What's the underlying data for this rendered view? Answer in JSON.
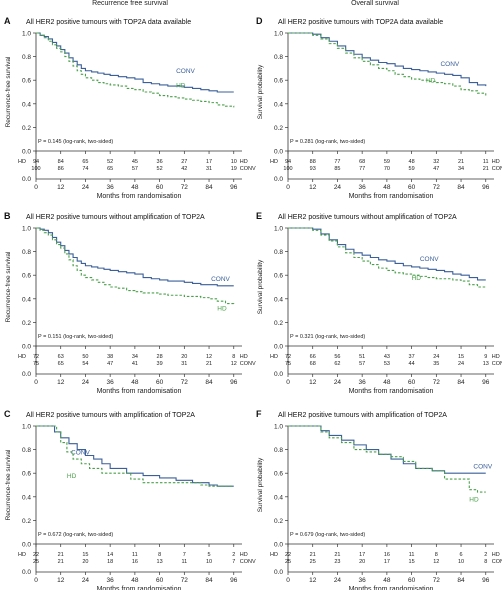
{
  "headers": {
    "left": "Recurrence free survival",
    "right": "Overall survival"
  },
  "colors": {
    "conv": "#3a5f9a",
    "hd": "#4aa04a",
    "axis": "#333333"
  },
  "x_axis_label": "Months from randomisation",
  "chart_data": [
    {
      "type": "line",
      "letter": "A",
      "title": "All HER2 positive tumours with TOP2A data available",
      "ylabel": "Recurrence-free survival",
      "xlabel": "Months from randomisation",
      "xlim": [
        0,
        100
      ],
      "ylim": [
        0,
        1.0
      ],
      "xticks": [
        0,
        12,
        24,
        36,
        48,
        60,
        72,
        84,
        96
      ],
      "yticks": [
        "0.0",
        "0.2",
        "0.4",
        "0.6",
        "0.8",
        "1.0"
      ],
      "pvalue": "P = 0.145 (log-rank, two-sided)",
      "series": [
        {
          "name": "CONV",
          "style": "solid",
          "label_at": [
            68,
            0.66
          ],
          "x": [
            0,
            2,
            4,
            6,
            8,
            10,
            12,
            14,
            16,
            18,
            20,
            22,
            24,
            27,
            30,
            33,
            36,
            40,
            44,
            48,
            52,
            56,
            60,
            64,
            68,
            72,
            76,
            80,
            84,
            88,
            92,
            96
          ],
          "y": [
            1.0,
            0.98,
            0.97,
            0.95,
            0.92,
            0.89,
            0.86,
            0.83,
            0.79,
            0.76,
            0.73,
            0.7,
            0.68,
            0.67,
            0.66,
            0.65,
            0.64,
            0.63,
            0.62,
            0.61,
            0.58,
            0.57,
            0.56,
            0.55,
            0.55,
            0.54,
            0.53,
            0.52,
            0.51,
            0.5,
            0.5,
            0.5
          ]
        },
        {
          "name": "HD",
          "style": "dashed",
          "label_at": [
            68,
            0.54
          ],
          "x": [
            0,
            2,
            4,
            6,
            8,
            10,
            12,
            14,
            16,
            18,
            20,
            22,
            24,
            27,
            30,
            33,
            36,
            40,
            44,
            48,
            52,
            56,
            60,
            64,
            68,
            72,
            76,
            80,
            84,
            88,
            92,
            96
          ],
          "y": [
            1.0,
            0.98,
            0.96,
            0.93,
            0.9,
            0.87,
            0.84,
            0.8,
            0.76,
            0.72,
            0.68,
            0.65,
            0.62,
            0.6,
            0.58,
            0.57,
            0.56,
            0.55,
            0.53,
            0.52,
            0.5,
            0.49,
            0.47,
            0.46,
            0.45,
            0.44,
            0.43,
            0.42,
            0.41,
            0.39,
            0.38,
            0.37
          ]
        }
      ],
      "risk_table": {
        "labels": [
          "HD",
          "CONV"
        ],
        "rows": [
          [
            "94",
            "84",
            "65",
            "52",
            "45",
            "36",
            "27",
            "17",
            "10"
          ],
          [
            "100",
            "86",
            "74",
            "65",
            "57",
            "52",
            "42",
            "31",
            "19"
          ]
        ]
      }
    },
    {
      "type": "line",
      "letter": "D",
      "title": "All HER2 positive tumours with TOP2A data available",
      "ylabel": "Survival probability",
      "xlabel": "Months from randomisation",
      "xlim": [
        0,
        100
      ],
      "ylim": [
        0,
        1.0
      ],
      "xticks": [
        0,
        12,
        24,
        36,
        48,
        60,
        72,
        84,
        96
      ],
      "yticks": [
        "0.0",
        "0.2",
        "0.4",
        "0.6",
        "0.8",
        "1.0"
      ],
      "pvalue": "P = 0.281 (log-rank, two-sided)",
      "series": [
        {
          "name": "CONV",
          "style": "solid",
          "label_at": [
            74,
            0.72
          ],
          "x": [
            0,
            4,
            8,
            12,
            16,
            20,
            24,
            28,
            32,
            36,
            40,
            44,
            48,
            52,
            56,
            60,
            64,
            68,
            72,
            76,
            80,
            84,
            88,
            92,
            96
          ],
          "y": [
            1.0,
            1.0,
            1.0,
            0.99,
            0.96,
            0.93,
            0.89,
            0.85,
            0.82,
            0.79,
            0.77,
            0.75,
            0.74,
            0.72,
            0.7,
            0.69,
            0.68,
            0.67,
            0.66,
            0.65,
            0.64,
            0.62,
            0.58,
            0.56,
            0.55
          ]
        },
        {
          "name": "HD",
          "style": "dashed",
          "label_at": [
            67,
            0.58
          ],
          "x": [
            0,
            4,
            8,
            12,
            16,
            20,
            24,
            28,
            32,
            36,
            40,
            44,
            48,
            52,
            56,
            60,
            64,
            68,
            72,
            76,
            80,
            84,
            88,
            92,
            96
          ],
          "y": [
            1.0,
            1.0,
            1.0,
            0.98,
            0.95,
            0.91,
            0.87,
            0.83,
            0.79,
            0.76,
            0.73,
            0.7,
            0.68,
            0.65,
            0.63,
            0.61,
            0.6,
            0.59,
            0.58,
            0.57,
            0.55,
            0.52,
            0.51,
            0.49,
            0.47
          ]
        }
      ],
      "risk_table": {
        "labels": [
          "HD",
          "CONV"
        ],
        "rows": [
          [
            "94",
            "88",
            "77",
            "68",
            "59",
            "48",
            "32",
            "21",
            "11"
          ],
          [
            "100",
            "93",
            "85",
            "77",
            "70",
            "59",
            "47",
            "34",
            "21"
          ]
        ]
      }
    },
    {
      "type": "line",
      "letter": "B",
      "title": "All HER2 positive tumours without amplification of TOP2A",
      "ylabel": "Recurrence-free survival",
      "xlabel": "Months from randomisation",
      "xlim": [
        0,
        100
      ],
      "ylim": [
        0,
        1.0
      ],
      "xticks": [
        0,
        12,
        24,
        36,
        48,
        60,
        72,
        84,
        96
      ],
      "yticks": [
        "0.0",
        "0.2",
        "0.4",
        "0.6",
        "0.8",
        "1.0"
      ],
      "pvalue": "P = 0.151 (log-rank, two-sided)",
      "series": [
        {
          "name": "CONV",
          "style": "solid",
          "label_at": [
            85,
            0.55
          ],
          "x": [
            0,
            2,
            4,
            6,
            8,
            10,
            12,
            14,
            16,
            18,
            20,
            22,
            24,
            27,
            30,
            33,
            36,
            40,
            44,
            48,
            52,
            56,
            60,
            64,
            68,
            72,
            76,
            80,
            84,
            88,
            92,
            96
          ],
          "y": [
            1.0,
            0.99,
            0.98,
            0.96,
            0.92,
            0.88,
            0.85,
            0.81,
            0.78,
            0.75,
            0.72,
            0.7,
            0.68,
            0.67,
            0.66,
            0.65,
            0.64,
            0.63,
            0.62,
            0.61,
            0.58,
            0.57,
            0.56,
            0.55,
            0.55,
            0.54,
            0.53,
            0.52,
            0.52,
            0.51,
            0.51,
            0.51
          ]
        },
        {
          "name": "HD",
          "style": "dashed",
          "label_at": [
            88,
            0.3
          ],
          "x": [
            0,
            2,
            4,
            6,
            8,
            10,
            12,
            14,
            16,
            18,
            20,
            22,
            24,
            27,
            30,
            33,
            36,
            40,
            44,
            48,
            52,
            56,
            60,
            64,
            68,
            72,
            76,
            80,
            84,
            88,
            92,
            96
          ],
          "y": [
            1.0,
            0.98,
            0.96,
            0.94,
            0.9,
            0.86,
            0.83,
            0.78,
            0.73,
            0.68,
            0.64,
            0.6,
            0.58,
            0.56,
            0.54,
            0.52,
            0.5,
            0.49,
            0.47,
            0.46,
            0.45,
            0.45,
            0.44,
            0.43,
            0.43,
            0.42,
            0.42,
            0.41,
            0.4,
            0.38,
            0.36,
            0.35
          ]
        }
      ],
      "risk_table": {
        "labels": [
          "HD",
          "CONV"
        ],
        "rows": [
          [
            "72",
            "63",
            "50",
            "38",
            "34",
            "28",
            "20",
            "12",
            "8"
          ],
          [
            "75",
            "65",
            "54",
            "47",
            "41",
            "39",
            "31",
            "21",
            "12"
          ]
        ]
      }
    },
    {
      "type": "line",
      "letter": "E",
      "title": "All HER2 positive tumours without amplification of TOP2A",
      "ylabel": "Survival probability",
      "xlabel": "Months from randomisation",
      "xlim": [
        0,
        100
      ],
      "ylim": [
        0,
        1.0
      ],
      "xticks": [
        0,
        12,
        24,
        36,
        48,
        60,
        72,
        84,
        96
      ],
      "yticks": [
        "0.0",
        "0.2",
        "0.4",
        "0.6",
        "0.8",
        "1.0"
      ],
      "pvalue": "P = 0.321 (log-rank, two-sided)",
      "series": [
        {
          "name": "CONV",
          "style": "solid",
          "label_at": [
            64,
            0.72
          ],
          "x": [
            0,
            4,
            8,
            12,
            16,
            20,
            24,
            28,
            32,
            36,
            40,
            44,
            48,
            52,
            56,
            60,
            64,
            68,
            72,
            76,
            80,
            84,
            88,
            92,
            96
          ],
          "y": [
            1.0,
            1.0,
            1.0,
            0.99,
            0.95,
            0.9,
            0.86,
            0.82,
            0.79,
            0.77,
            0.75,
            0.73,
            0.72,
            0.7,
            0.68,
            0.67,
            0.66,
            0.65,
            0.64,
            0.63,
            0.61,
            0.6,
            0.58,
            0.56,
            0.56
          ]
        },
        {
          "name": "HD",
          "style": "dashed",
          "label_at": [
            60,
            0.56
          ],
          "x": [
            0,
            4,
            8,
            12,
            16,
            20,
            24,
            28,
            32,
            36,
            40,
            44,
            48,
            52,
            56,
            60,
            64,
            68,
            72,
            76,
            80,
            84,
            88,
            92,
            96
          ],
          "y": [
            1.0,
            1.0,
            1.0,
            0.98,
            0.94,
            0.89,
            0.84,
            0.79,
            0.75,
            0.72,
            0.69,
            0.66,
            0.64,
            0.62,
            0.61,
            0.6,
            0.59,
            0.58,
            0.57,
            0.57,
            0.56,
            0.55,
            0.52,
            0.5,
            0.49
          ]
        }
      ],
      "risk_table": {
        "labels": [
          "HD",
          "CONV"
        ],
        "rows": [
          [
            "72",
            "66",
            "56",
            "51",
            "43",
            "37",
            "24",
            "15",
            "9"
          ],
          [
            "75",
            "68",
            "62",
            "57",
            "53",
            "44",
            "35",
            "24",
            "13"
          ]
        ]
      }
    },
    {
      "type": "line",
      "letter": "C",
      "title": "All HER2 positive tumours with amplification of TOP2A",
      "ylabel": "Recurrence-free survival",
      "xlabel": "Months from randomisation",
      "xlim": [
        0,
        100
      ],
      "ylim": [
        0,
        1.0
      ],
      "xticks": [
        0,
        12,
        24,
        36,
        48,
        60,
        72,
        84,
        96
      ],
      "yticks": [
        "0.0",
        "0.2",
        "0.4",
        "0.6",
        "0.8",
        "1.0"
      ],
      "pvalue": "P = 0.672 (log-rank, two-sided)",
      "series": [
        {
          "name": "CONV",
          "style": "solid",
          "label_at": [
            17,
            0.76
          ],
          "x": [
            0,
            6,
            9,
            12,
            16,
            20,
            24,
            28,
            32,
            36,
            44,
            52,
            60,
            68,
            76,
            84,
            88,
            96
          ],
          "y": [
            1.0,
            1.0,
            0.95,
            0.9,
            0.85,
            0.8,
            0.75,
            0.72,
            0.68,
            0.64,
            0.6,
            0.58,
            0.56,
            0.54,
            0.52,
            0.5,
            0.49,
            0.49
          ]
        },
        {
          "name": "HD",
          "style": "dashed",
          "label_at": [
            15,
            0.56
          ],
          "x": [
            0,
            6,
            10,
            12,
            15,
            18,
            22,
            26,
            32,
            38,
            46,
            52,
            58,
            64,
            72,
            80,
            84,
            96
          ],
          "y": [
            1.0,
            1.0,
            0.95,
            0.86,
            0.78,
            0.72,
            0.68,
            0.64,
            0.6,
            0.6,
            0.55,
            0.52,
            0.52,
            0.52,
            0.52,
            0.5,
            0.49,
            0.49
          ]
        }
      ],
      "risk_table": {
        "labels": [
          "HD",
          "CONV"
        ],
        "rows": [
          [
            "22",
            "21",
            "15",
            "14",
            "11",
            "8",
            "7",
            "5",
            "2"
          ],
          [
            "25",
            "21",
            "20",
            "18",
            "16",
            "13",
            "11",
            "10",
            "7"
          ]
        ]
      }
    },
    {
      "type": "line",
      "letter": "F",
      "title": "All HER2 positive tumours with amplification of TOP2A",
      "ylabel": "Survival probability",
      "xlabel": "Months from randomisation",
      "xlim": [
        0,
        100
      ],
      "ylim": [
        0,
        1.0
      ],
      "xticks": [
        0,
        12,
        24,
        36,
        48,
        60,
        72,
        84,
        96
      ],
      "yticks": [
        "0.0",
        "0.2",
        "0.4",
        "0.6",
        "0.8",
        "1.0"
      ],
      "pvalue": "P = 0.679 (log-rank, two-sided)",
      "series": [
        {
          "name": "CONV",
          "style": "solid",
          "label_at": [
            90,
            0.64
          ],
          "x": [
            0,
            8,
            12,
            16,
            20,
            26,
            32,
            38,
            44,
            50,
            56,
            62,
            70,
            76,
            84,
            88,
            96
          ],
          "y": [
            1.0,
            1.0,
            1.0,
            0.96,
            0.92,
            0.88,
            0.84,
            0.8,
            0.76,
            0.72,
            0.68,
            0.64,
            0.62,
            0.6,
            0.6,
            0.6,
            0.6
          ]
        },
        {
          "name": "HD",
          "style": "dashed",
          "label_at": [
            88,
            0.36
          ],
          "x": [
            0,
            8,
            12,
            16,
            20,
            26,
            32,
            38,
            44,
            50,
            56,
            62,
            70,
            76,
            84,
            88,
            92,
            96
          ],
          "y": [
            1.0,
            1.0,
            1.0,
            0.95,
            0.9,
            0.86,
            0.8,
            0.78,
            0.76,
            0.74,
            0.7,
            0.64,
            0.62,
            0.55,
            0.55,
            0.46,
            0.44,
            0.44
          ]
        }
      ],
      "risk_table": {
        "labels": [
          "HD",
          "CONV"
        ],
        "rows": [
          [
            "22",
            "21",
            "21",
            "17",
            "16",
            "11",
            "8",
            "6",
            "2"
          ],
          [
            "25",
            "25",
            "23",
            "20",
            "17",
            "15",
            "12",
            "10",
            "8"
          ]
        ]
      }
    }
  ]
}
